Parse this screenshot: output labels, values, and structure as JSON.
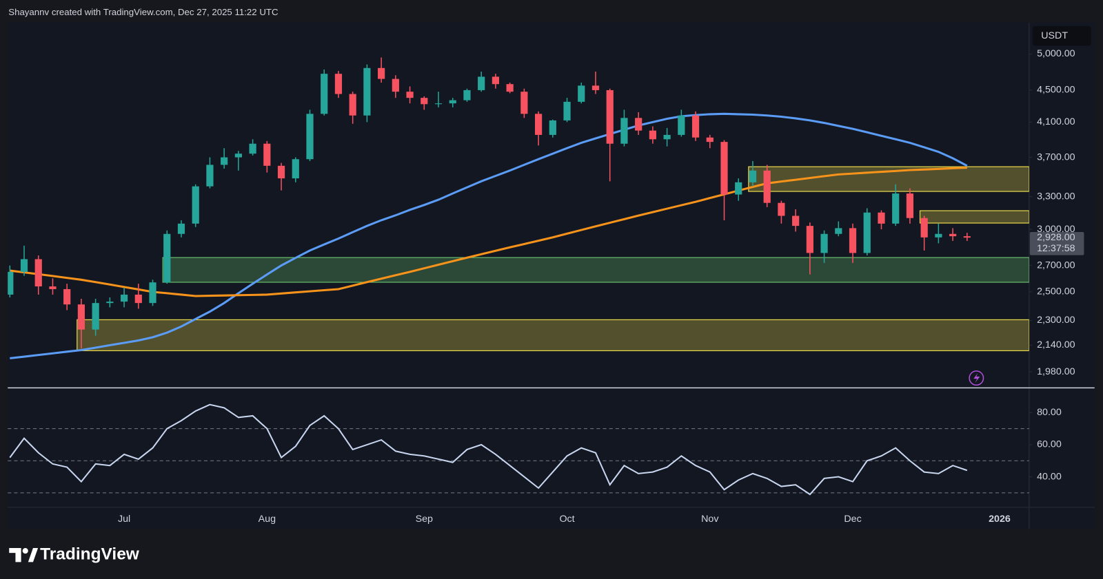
{
  "header": {
    "attribution": "Shayannv created with TradingView.com, Dec 27, 2025 11:22 UTC"
  },
  "footer": {
    "brand": "TradingView"
  },
  "chart_data": [
    {
      "type": "candlestick",
      "currency": "USDT",
      "log_scale": true,
      "up_color": "#26a69a",
      "down_color": "#f7525f",
      "categories": [
        null,
        null,
        null,
        null,
        null,
        null,
        null,
        null,
        "Jul",
        null,
        null,
        null,
        null,
        null,
        null,
        null,
        null,
        null,
        "Aug",
        null,
        null,
        null,
        null,
        null,
        null,
        null,
        null,
        null,
        null,
        "Sep",
        null,
        null,
        null,
        null,
        null,
        null,
        null,
        null,
        null,
        "Oct",
        null,
        null,
        null,
        null,
        null,
        null,
        null,
        null,
        null,
        "Nov",
        null,
        null,
        null,
        null,
        null,
        null,
        null,
        null,
        null,
        "Dec",
        null,
        null,
        null,
        null,
        null,
        null,
        null,
        null
      ],
      "next_period_label": "2026",
      "ohlc": [
        [
          2480,
          2700,
          2460,
          2650
        ],
        [
          2650,
          2860,
          2620,
          2750
        ],
        [
          2750,
          2780,
          2480,
          2540
        ],
        [
          2540,
          2600,
          2480,
          2520
        ],
        [
          2520,
          2560,
          2370,
          2410
        ],
        [
          2410,
          2450,
          2120,
          2240
        ],
        [
          2240,
          2450,
          2200,
          2420
        ],
        [
          2420,
          2460,
          2390,
          2430
        ],
        [
          2430,
          2530,
          2390,
          2480
        ],
        [
          2480,
          2560,
          2380,
          2420
        ],
        [
          2420,
          2590,
          2400,
          2570
        ],
        [
          2570,
          2990,
          2560,
          2960
        ],
        [
          2960,
          3080,
          2930,
          3050
        ],
        [
          3050,
          3420,
          3020,
          3400
        ],
        [
          3400,
          3700,
          3380,
          3620
        ],
        [
          3620,
          3800,
          3580,
          3700
        ],
        [
          3700,
          3770,
          3560,
          3740
        ],
        [
          3740,
          3900,
          3720,
          3850
        ],
        [
          3850,
          3880,
          3540,
          3610
        ],
        [
          3610,
          3640,
          3360,
          3480
        ],
        [
          3480,
          3700,
          3440,
          3680
        ],
        [
          3680,
          4250,
          3660,
          4200
        ],
        [
          4200,
          4780,
          4180,
          4720
        ],
        [
          4720,
          4760,
          4400,
          4450
        ],
        [
          4450,
          4480,
          4080,
          4180
        ],
        [
          4180,
          4850,
          4100,
          4800
        ],
        [
          4800,
          4950,
          4600,
          4650
        ],
        [
          4650,
          4700,
          4400,
          4480
        ],
        [
          4480,
          4550,
          4330,
          4400
        ],
        [
          4400,
          4420,
          4250,
          4320
        ],
        [
          4320,
          4480,
          4280,
          4330
        ],
        [
          4330,
          4400,
          4280,
          4370
        ],
        [
          4370,
          4520,
          4350,
          4500
        ],
        [
          4500,
          4750,
          4480,
          4680
        ],
        [
          4680,
          4720,
          4520,
          4580
        ],
        [
          4580,
          4600,
          4460,
          4480
        ],
        [
          4480,
          4520,
          4150,
          4200
        ],
        [
          4200,
          4230,
          3830,
          3950
        ],
        [
          3950,
          4130,
          3920,
          4120
        ],
        [
          4120,
          4400,
          4100,
          4350
        ],
        [
          4350,
          4600,
          4330,
          4560
        ],
        [
          4560,
          4750,
          4450,
          4500
        ],
        [
          4500,
          4520,
          3450,
          3850
        ],
        [
          3850,
          4250,
          3820,
          4150
        ],
        [
          4150,
          4220,
          3950,
          4000
        ],
        [
          4000,
          4050,
          3850,
          3900
        ],
        [
          3900,
          4030,
          3820,
          3950
        ],
        [
          3950,
          4250,
          3930,
          4180
        ],
        [
          4180,
          4230,
          3880,
          3920
        ],
        [
          3920,
          3950,
          3800,
          3870
        ],
        [
          3870,
          3890,
          3080,
          3320
        ],
        [
          3320,
          3480,
          3260,
          3440
        ],
        [
          3440,
          3660,
          3400,
          3560
        ],
        [
          3560,
          3620,
          3200,
          3240
        ],
        [
          3240,
          3260,
          3050,
          3120
        ],
        [
          3120,
          3180,
          2980,
          3030
        ],
        [
          3030,
          3060,
          2630,
          2800
        ],
        [
          2800,
          2990,
          2720,
          2960
        ],
        [
          2960,
          3070,
          2940,
          3010
        ],
        [
          3010,
          3050,
          2720,
          2800
        ],
        [
          2800,
          3190,
          2780,
          3150
        ],
        [
          3150,
          3170,
          3000,
          3050
        ],
        [
          3050,
          3420,
          3030,
          3330
        ],
        [
          3330,
          3380,
          3050,
          3100
        ],
        [
          3100,
          3120,
          2820,
          2930
        ],
        [
          2930,
          3050,
          2880,
          2960
        ],
        [
          2960,
          3010,
          2900,
          2940
        ],
        [
          2940,
          2970,
          2900,
          2928
        ]
      ],
      "overlays": [
        {
          "color": "#5b9cf6",
          "values": [
            2060,
            2070,
            2080,
            2090,
            2100,
            2110,
            2125,
            2140,
            2155,
            2170,
            2190,
            2220,
            2260,
            2310,
            2360,
            2420,
            2490,
            2560,
            2630,
            2700,
            2760,
            2820,
            2870,
            2920,
            2975,
            3030,
            3080,
            3125,
            3175,
            3220,
            3270,
            3330,
            3390,
            3450,
            3505,
            3560,
            3620,
            3680,
            3740,
            3800,
            3860,
            3910,
            3960,
            4010,
            4060,
            4100,
            4140,
            4170,
            4185,
            4195,
            4200,
            4195,
            4190,
            4180,
            4165,
            4145,
            4120,
            4090,
            4055,
            4020,
            3980,
            3940,
            3900,
            3860,
            3810,
            3760,
            3690,
            3610
          ]
        },
        {
          "color": "#f7931a",
          "values": [
            2660,
            2646,
            2632,
            2618,
            2604,
            2590,
            2572,
            2554,
            2536,
            2518,
            2500,
            2490,
            2480,
            2470,
            2472,
            2474,
            2476,
            2478,
            2480,
            2488,
            2496,
            2504,
            2512,
            2520,
            2546,
            2572,
            2598,
            2624,
            2650,
            2678,
            2706,
            2734,
            2762,
            2790,
            2818,
            2846,
            2874,
            2902,
            2930,
            2962,
            2994,
            3026,
            3058,
            3090,
            3122,
            3154,
            3186,
            3218,
            3250,
            3286,
            3322,
            3358,
            3394,
            3430,
            3448,
            3466,
            3484,
            3502,
            3520,
            3529,
            3538,
            3547,
            3556,
            3565,
            3571,
            3577,
            3584,
            3590
          ]
        }
      ],
      "zones": [
        {
          "from": 2571,
          "to": 2763,
          "color": "#66bb6a"
        },
        {
          "from": 2106,
          "to": 2305,
          "color": "#e8d84a"
        },
        {
          "from": 3350,
          "to": 3600,
          "color": "#e8d84a"
        },
        {
          "from": 3055,
          "to": 3167,
          "color": "#e8d84a"
        }
      ],
      "last_price": {
        "value": 2928,
        "label": "2,928.00"
      },
      "countdown": "12:37:58",
      "ylim": [
        1890,
        5480
      ],
      "yticks": [
        {
          "value": 5000,
          "label": "5,000.00"
        },
        {
          "value": 4500,
          "label": "4,500.00"
        },
        {
          "value": 4100,
          "label": "4,100.00"
        },
        {
          "value": 3700,
          "label": "3,700.00"
        },
        {
          "value": 3300,
          "label": "3,300.00"
        },
        {
          "value": 3000,
          "label": "3,000.00"
        },
        {
          "value": 2700,
          "label": "2,700.00"
        },
        {
          "value": 2500,
          "label": "2,500.00"
        },
        {
          "value": 2300,
          "label": "2,300.00"
        },
        {
          "value": 2140,
          "label": "2,140.00"
        },
        {
          "value": 1980,
          "label": "1,980.00"
        }
      ]
    },
    {
      "type": "line",
      "color": "#c8d6f0",
      "values": [
        52,
        64,
        55,
        48,
        46,
        37,
        48,
        47,
        54,
        51,
        58,
        70,
        75,
        81,
        85,
        83,
        77,
        78,
        70,
        52,
        59,
        72,
        78,
        70,
        57,
        60,
        63,
        56,
        54,
        53,
        51,
        49,
        57,
        60,
        54,
        47,
        40,
        33,
        43,
        53,
        58,
        55,
        35,
        47,
        42,
        43,
        46,
        53,
        47,
        43,
        32,
        38,
        42,
        39,
        34,
        35,
        29,
        39,
        40,
        37,
        50,
        53,
        58,
        50,
        43,
        42,
        47,
        44
      ],
      "levels": [
        70,
        50,
        30
      ],
      "ylim": [
        21,
        95
      ],
      "yticks": [
        {
          "value": 80,
          "label": "80.00"
        },
        {
          "value": 60,
          "label": "60.00"
        },
        {
          "value": 40,
          "label": "40.00"
        }
      ]
    }
  ]
}
